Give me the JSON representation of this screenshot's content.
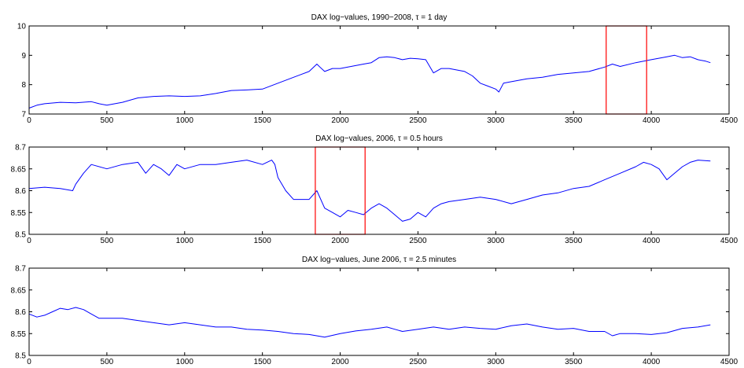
{
  "colors": {
    "line": "#0000ff",
    "highlight": "#ff0000",
    "axis": "#000000",
    "background": "#ffffff"
  },
  "chart_data": [
    {
      "type": "line",
      "title": "DAX log−values, 1990−2008, τ = 1 day",
      "xlim": [
        0,
        4500
      ],
      "ylim": [
        7,
        10
      ],
      "x_ticks": [
        "0",
        "500",
        "1000",
        "1500",
        "2000",
        "2500",
        "3000",
        "3500",
        "4000",
        "4500"
      ],
      "y_ticks": [
        "7",
        "8",
        "9",
        "10"
      ],
      "grid": false,
      "highlight_range": [
        3710,
        3970
      ],
      "series": [
        {
          "x": [
            0,
            50,
            100,
            200,
            300,
            400,
            450,
            500,
            600,
            700,
            800,
            900,
            1000,
            1100,
            1200,
            1300,
            1400,
            1500,
            1600,
            1700,
            1800,
            1850,
            1870,
            1900,
            1950,
            2000,
            2050,
            2100,
            2150,
            2200,
            2250,
            2300,
            2350,
            2400,
            2450,
            2500,
            2550,
            2600,
            2650,
            2700,
            2750,
            2800,
            2850,
            2900,
            2950,
            3000,
            3020,
            3050,
            3100,
            3200,
            3300,
            3400,
            3500,
            3600,
            3700,
            3750,
            3800,
            3900,
            4000,
            4100,
            4150,
            4200,
            4250,
            4300,
            4350,
            4380
          ],
          "y": [
            7.2,
            7.3,
            7.35,
            7.4,
            7.38,
            7.42,
            7.35,
            7.3,
            7.4,
            7.55,
            7.6,
            7.62,
            7.6,
            7.62,
            7.7,
            7.8,
            7.82,
            7.85,
            8.05,
            8.25,
            8.45,
            8.7,
            8.6,
            8.45,
            8.55,
            8.55,
            8.6,
            8.65,
            8.7,
            8.75,
            8.92,
            8.95,
            8.92,
            8.85,
            8.9,
            8.88,
            8.85,
            8.4,
            8.55,
            8.55,
            8.5,
            8.45,
            8.3,
            8.05,
            7.95,
            7.85,
            7.75,
            8.05,
            8.1,
            8.2,
            8.25,
            8.35,
            8.4,
            8.45,
            8.6,
            8.7,
            8.62,
            8.75,
            8.85,
            8.95,
            9.0,
            8.92,
            8.95,
            8.85,
            8.8,
            8.75
          ]
        }
      ]
    },
    {
      "type": "line",
      "title": "DAX log−values, 2006, τ = 0.5 hours",
      "xlim": [
        0,
        4500
      ],
      "ylim": [
        8.5,
        8.7
      ],
      "x_ticks": [
        "0",
        "500",
        "1000",
        "1500",
        "2000",
        "2500",
        "3000",
        "3500",
        "4000",
        "4500"
      ],
      "y_ticks": [
        "8.5",
        "8.55",
        "8.6",
        "8.65",
        "8.7"
      ],
      "grid": false,
      "highlight_range": [
        1840,
        2160
      ],
      "series": [
        {
          "x": [
            0,
            100,
            200,
            280,
            300,
            350,
            400,
            500,
            600,
            700,
            750,
            800,
            850,
            900,
            950,
            1000,
            1100,
            1200,
            1300,
            1400,
            1500,
            1560,
            1580,
            1600,
            1650,
            1700,
            1800,
            1850,
            1900,
            1950,
            2000,
            2050,
            2100,
            2150,
            2200,
            2250,
            2300,
            2350,
            2400,
            2450,
            2500,
            2550,
            2600,
            2650,
            2700,
            2800,
            2900,
            3000,
            3100,
            3200,
            3300,
            3400,
            3500,
            3600,
            3700,
            3800,
            3900,
            3950,
            4000,
            4050,
            4100,
            4150,
            4200,
            4250,
            4300,
            4380
          ],
          "y": [
            8.605,
            8.608,
            8.605,
            8.6,
            8.615,
            8.64,
            8.66,
            8.65,
            8.66,
            8.665,
            8.64,
            8.66,
            8.65,
            8.635,
            8.66,
            8.65,
            8.66,
            8.66,
            8.665,
            8.67,
            8.66,
            8.67,
            8.66,
            8.63,
            8.6,
            8.58,
            8.58,
            8.6,
            8.56,
            8.55,
            8.54,
            8.555,
            8.55,
            8.545,
            8.56,
            8.57,
            8.56,
            8.545,
            8.53,
            8.535,
            8.55,
            8.54,
            8.56,
            8.57,
            8.575,
            8.58,
            8.585,
            8.58,
            8.57,
            8.58,
            8.59,
            8.595,
            8.605,
            8.61,
            8.625,
            8.64,
            8.655,
            8.665,
            8.66,
            8.65,
            8.625,
            8.64,
            8.655,
            8.665,
            8.67,
            8.668
          ]
        }
      ]
    },
    {
      "type": "line",
      "title": "DAX log−values, June 2006, τ = 2.5 minutes",
      "xlim": [
        0,
        4500
      ],
      "ylim": [
        8.5,
        8.7
      ],
      "x_ticks": [
        "0",
        "500",
        "1000",
        "1500",
        "2000",
        "2500",
        "3000",
        "3500",
        "4000",
        "4500"
      ],
      "y_ticks": [
        "8.5",
        "8.55",
        "8.6",
        "8.65",
        "8.7"
      ],
      "grid": false,
      "series": [
        {
          "x": [
            0,
            50,
            100,
            150,
            200,
            250,
            300,
            350,
            400,
            450,
            500,
            600,
            700,
            800,
            900,
            1000,
            1100,
            1200,
            1300,
            1400,
            1500,
            1600,
            1700,
            1800,
            1900,
            2000,
            2100,
            2200,
            2300,
            2350,
            2400,
            2500,
            2600,
            2700,
            2800,
            2900,
            3000,
            3100,
            3200,
            3300,
            3400,
            3500,
            3600,
            3700,
            3750,
            3800,
            3900,
            4000,
            4100,
            4200,
            4300,
            4380
          ],
          "y": [
            8.595,
            8.588,
            8.592,
            8.6,
            8.608,
            8.605,
            8.61,
            8.605,
            8.595,
            8.585,
            8.585,
            8.585,
            8.58,
            8.575,
            8.57,
            8.575,
            8.57,
            8.565,
            8.565,
            8.56,
            8.558,
            8.555,
            8.55,
            8.548,
            8.542,
            8.55,
            8.556,
            8.56,
            8.565,
            8.56,
            8.555,
            8.56,
            8.565,
            8.56,
            8.565,
            8.562,
            8.56,
            8.568,
            8.572,
            8.565,
            8.56,
            8.562,
            8.555,
            8.555,
            8.545,
            8.55,
            8.55,
            8.548,
            8.552,
            8.562,
            8.565,
            8.57
          ]
        }
      ]
    }
  ]
}
